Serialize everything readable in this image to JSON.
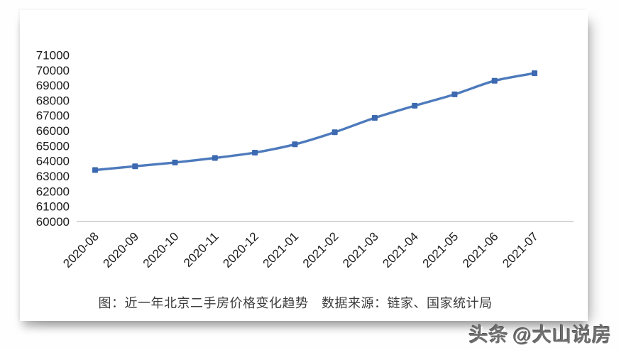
{
  "chart_data": {
    "type": "line",
    "categories": [
      "2020-08",
      "2020-09",
      "2020-10",
      "2020-11",
      "2020-12",
      "2021-01",
      "2021-02",
      "2021-03",
      "2021-04",
      "2021-05",
      "2021-06",
      "2021-07"
    ],
    "values": [
      63400,
      63650,
      63900,
      64200,
      64550,
      65100,
      65900,
      66850,
      67650,
      68400,
      69300,
      69800
    ],
    "title": "近一年北京二手房价格变化趋势",
    "xlabel": "",
    "ylabel": "",
    "ylim": [
      60000,
      71000
    ],
    "ytick_step": 1000,
    "grid": false,
    "legend": false,
    "marker_shape": "square",
    "line_color": "#4d7abc",
    "marker_color": "#3c69b0",
    "axis_line_color": "#c8c8c8",
    "tick_label_color": "#1c1c1c"
  },
  "caption": {
    "text": "图：近一年北京二手房价格变化趋势　数据来源：链家、国家统计局"
  },
  "watermark": {
    "logo": "头条",
    "handle": "@大山说房"
  }
}
